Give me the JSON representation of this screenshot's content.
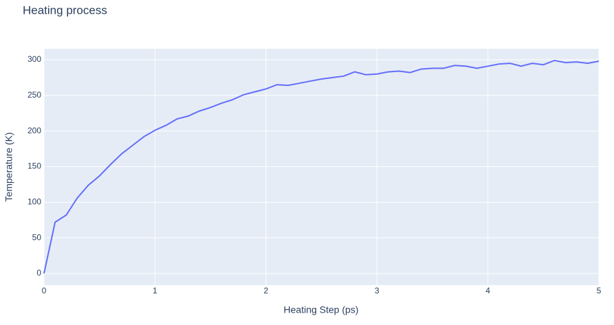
{
  "chart_data": {
    "type": "line",
    "title": "Heating process",
    "x_label": "Heating Step (ps)",
    "y_label": "Temperature (K)",
    "x": [
      0,
      0.1,
      0.2,
      0.3,
      0.4,
      0.5,
      0.6,
      0.7,
      0.8,
      0.9,
      1.0,
      1.1,
      1.2,
      1.3,
      1.4,
      1.5,
      1.6,
      1.7,
      1.8,
      1.9,
      2.0,
      2.1,
      2.2,
      2.3,
      2.4,
      2.5,
      2.6,
      2.7,
      2.8,
      2.9,
      3.0,
      3.1,
      3.2,
      3.3,
      3.4,
      3.5,
      3.6,
      3.7,
      3.8,
      3.9,
      4.0,
      4.1,
      4.2,
      4.3,
      4.4,
      4.5,
      4.6,
      4.7,
      4.8,
      4.9,
      5.0
    ],
    "series": [
      {
        "color": "#636efa",
        "values": [
          0,
          72,
          82,
          106,
          124,
          137,
          153,
          168,
          180,
          192,
          201,
          208,
          217,
          221,
          228,
          233,
          239,
          244,
          251,
          255,
          259,
          265,
          264,
          267,
          270,
          273,
          275,
          277,
          283,
          279,
          280,
          283,
          284,
          282,
          287,
          288,
          288,
          292,
          291,
          288,
          291,
          294,
          295,
          291,
          295,
          293,
          299,
          296,
          297,
          295,
          298
        ]
      }
    ],
    "xlim": [
      0,
      5
    ],
    "xticks": [
      0,
      1,
      2,
      3,
      4,
      5
    ],
    "ylim": [
      -16.4,
      315.4
    ],
    "yticks": [
      0,
      50,
      100,
      150,
      200,
      250,
      300
    ],
    "grid": true,
    "background": "#e5ecf6"
  }
}
